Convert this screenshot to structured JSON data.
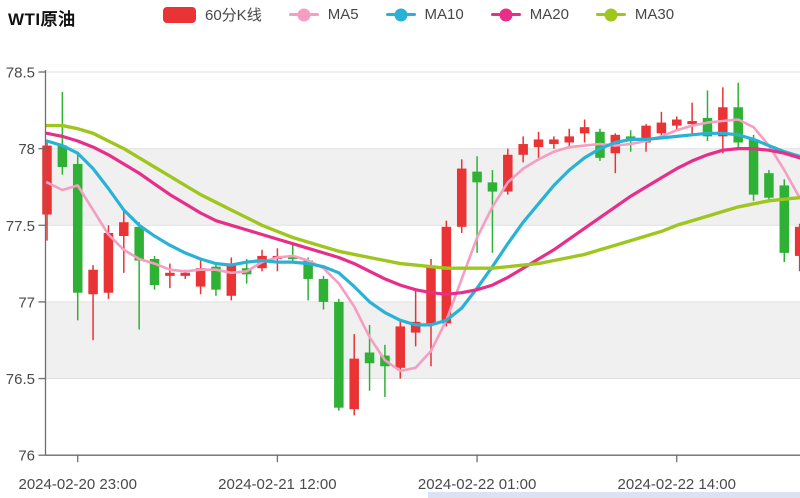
{
  "header": {
    "title": "WTI原油",
    "legend": [
      {
        "id": "kline-60min",
        "label": "60分K线",
        "marker": "rect",
        "color": "#e93334"
      },
      {
        "id": "ma5",
        "label": "MA5",
        "marker": "line-dot",
        "color": "#f59ec2"
      },
      {
        "id": "ma10",
        "label": "MA10",
        "marker": "line-dot",
        "color": "#29b2d5"
      },
      {
        "id": "ma20",
        "label": "MA20",
        "marker": "line-dot",
        "color": "#e62e8a"
      },
      {
        "id": "ma30",
        "label": "MA30",
        "marker": "line-dot",
        "color": "#9ec61f"
      }
    ]
  },
  "chart_data": {
    "type": "candlestick",
    "title": "WTI原油",
    "interval_label": "60分K线",
    "up_color": "#e93334",
    "down_color": "#2fb135",
    "ylim": [
      76.0,
      78.5
    ],
    "y_tick_labels": [
      "78.5",
      "78",
      "77.5",
      "77",
      "76.5",
      "76"
    ],
    "x_tick_labels": [
      "2024-02-20 23:00",
      "2024-02-21 12:00",
      "2024-02-22 01:00",
      "2024-02-22 14:00"
    ],
    "x_tick_indices": [
      2,
      15,
      28,
      41
    ],
    "shaded_bands": [
      [
        78.0,
        77.5
      ],
      [
        77.0,
        76.5
      ]
    ],
    "grid": true,
    "legend_position": "top",
    "candles_ochl": [
      [
        77.57,
        78.02,
        78.04,
        77.4
      ],
      [
        78.02,
        77.88,
        78.37,
        77.83
      ],
      [
        77.9,
        77.06,
        77.97,
        76.88
      ],
      [
        77.05,
        77.21,
        77.24,
        76.75
      ],
      [
        77.06,
        77.45,
        77.5,
        77.02
      ],
      [
        77.43,
        77.52,
        77.59,
        77.19
      ],
      [
        77.49,
        77.27,
        77.52,
        76.82
      ],
      [
        77.28,
        77.11,
        77.3,
        77.08
      ],
      [
        77.17,
        77.19,
        77.25,
        77.09
      ],
      [
        77.17,
        77.19,
        77.21,
        77.15
      ],
      [
        77.1,
        77.22,
        77.27,
        77.05
      ],
      [
        77.23,
        77.08,
        77.25,
        77.04
      ],
      [
        77.04,
        77.24,
        77.29,
        77.01
      ],
      [
        77.22,
        77.18,
        77.28,
        77.12
      ],
      [
        77.22,
        77.3,
        77.34,
        77.2
      ],
      [
        77.28,
        77.3,
        77.35,
        77.2
      ],
      [
        77.3,
        77.28,
        77.38,
        77.26
      ],
      [
        77.27,
        77.15,
        77.29,
        77.01
      ],
      [
        77.15,
        77.0,
        77.17,
        76.95
      ],
      [
        77.0,
        76.31,
        77.02,
        76.29
      ],
      [
        76.3,
        76.63,
        76.79,
        76.26
      ],
      [
        76.67,
        76.6,
        76.85,
        76.42
      ],
      [
        76.65,
        76.58,
        76.72,
        76.38
      ],
      [
        76.57,
        76.84,
        76.88,
        76.5
      ],
      [
        76.8,
        76.87,
        77.08,
        76.71
      ],
      [
        76.86,
        77.23,
        77.28,
        76.58
      ],
      [
        76.86,
        77.49,
        77.53,
        76.84
      ],
      [
        77.49,
        77.87,
        77.93,
        77.45
      ],
      [
        77.85,
        77.78,
        77.95,
        77.32
      ],
      [
        77.78,
        77.72,
        77.86,
        77.32
      ],
      [
        77.72,
        77.96,
        78.0,
        77.7
      ],
      [
        77.96,
        78.03,
        78.08,
        77.91
      ],
      [
        78.01,
        78.06,
        78.11,
        77.94
      ],
      [
        78.03,
        78.06,
        78.08,
        78.0
      ],
      [
        78.04,
        78.08,
        78.13,
        78.0
      ],
      [
        78.1,
        78.14,
        78.19,
        78.04
      ],
      [
        78.11,
        77.94,
        78.13,
        77.92
      ],
      [
        77.97,
        78.09,
        78.1,
        77.84
      ],
      [
        78.08,
        78.06,
        78.12,
        77.98
      ],
      [
        78.04,
        78.15,
        78.16,
        77.98
      ],
      [
        78.1,
        78.17,
        78.24,
        78.07
      ],
      [
        78.15,
        78.19,
        78.21,
        78.12
      ],
      [
        78.16,
        78.18,
        78.3,
        78.09
      ],
      [
        78.2,
        78.08,
        78.38,
        78.05
      ],
      [
        78.08,
        78.27,
        78.4,
        77.97
      ],
      [
        78.27,
        78.04,
        78.43,
        78.01
      ],
      [
        78.06,
        77.7,
        78.09,
        77.66
      ],
      [
        77.84,
        77.68,
        77.86,
        77.65
      ],
      [
        77.76,
        77.32,
        77.8,
        77.26
      ],
      [
        77.3,
        77.49,
        77.51,
        77.2
      ]
    ],
    "ma_series": [
      {
        "name": "MA5",
        "color": "#f59ec2",
        "values": [
          77.78,
          77.73,
          77.76,
          77.6,
          77.44,
          77.34,
          77.28,
          77.25,
          77.21,
          77.2,
          77.21,
          77.21,
          77.19,
          77.2,
          77.26,
          77.29,
          77.3,
          77.27,
          77.22,
          77.12,
          76.97,
          76.77,
          76.62,
          76.55,
          76.57,
          76.68,
          76.88,
          77.15,
          77.42,
          77.62,
          77.78,
          77.87,
          77.93,
          77.98,
          78.01,
          78.02,
          78.03,
          78.02,
          78.03,
          78.05,
          78.08,
          78.12,
          78.15,
          78.17,
          78.18,
          78.19,
          78.14,
          78.02,
          77.86,
          77.68
        ]
      },
      {
        "name": "MA10",
        "color": "#29b2d5",
        "values": [
          78.05,
          78.02,
          77.97,
          77.87,
          77.74,
          77.6,
          77.5,
          77.43,
          77.37,
          77.32,
          77.28,
          77.25,
          77.24,
          77.26,
          77.27,
          77.26,
          77.26,
          77.25,
          77.23,
          77.19,
          77.1,
          77.0,
          76.93,
          76.88,
          76.85,
          76.85,
          76.88,
          76.96,
          77.09,
          77.23,
          77.38,
          77.52,
          77.64,
          77.76,
          77.86,
          77.94,
          78.0,
          78.04,
          78.06,
          78.06,
          78.07,
          78.08,
          78.09,
          78.1,
          78.1,
          78.09,
          78.06,
          78.02,
          77.98,
          77.95
        ]
      },
      {
        "name": "MA20",
        "color": "#e62e8a",
        "values": [
          78.1,
          78.08,
          78.05,
          78.01,
          77.96,
          77.9,
          77.84,
          77.77,
          77.7,
          77.64,
          77.58,
          77.53,
          77.5,
          77.47,
          77.44,
          77.41,
          77.38,
          77.35,
          77.32,
          77.29,
          77.25,
          77.2,
          77.15,
          77.11,
          77.08,
          77.06,
          77.05,
          77.06,
          77.08,
          77.11,
          77.16,
          77.22,
          77.28,
          77.34,
          77.41,
          77.48,
          77.55,
          77.62,
          77.69,
          77.75,
          77.81,
          77.87,
          77.92,
          77.96,
          77.99,
          78.0,
          78.0,
          77.99,
          77.97,
          77.94
        ]
      },
      {
        "name": "MA30",
        "color": "#9ec61f",
        "values": [
          78.15,
          78.15,
          78.13,
          78.1,
          78.05,
          78.0,
          77.94,
          77.88,
          77.82,
          77.76,
          77.7,
          77.65,
          77.6,
          77.55,
          77.5,
          77.46,
          77.42,
          77.39,
          77.36,
          77.33,
          77.31,
          77.29,
          77.27,
          77.25,
          77.24,
          77.23,
          77.22,
          77.22,
          77.22,
          77.22,
          77.23,
          77.24,
          77.25,
          77.27,
          77.29,
          77.31,
          77.34,
          77.37,
          77.4,
          77.43,
          77.46,
          77.5,
          77.53,
          77.56,
          77.59,
          77.62,
          77.64,
          77.66,
          77.67,
          77.68
        ]
      }
    ]
  }
}
